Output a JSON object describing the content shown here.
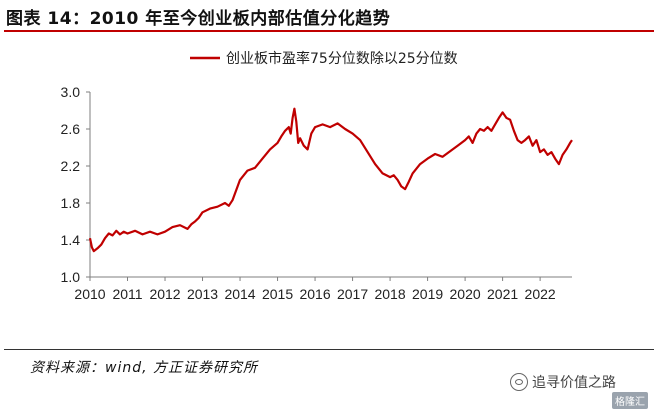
{
  "figure": {
    "title": "图表 14：2010 年至今创业板内部估值分化趋势",
    "source": "资料来源：wind, 方正证券研究所",
    "watermark": "追寻价值之路",
    "logo_text": "格隆汇"
  },
  "colors": {
    "series": "#c00000",
    "axis": "#7f7f7f",
    "title_rule": "#c00000"
  },
  "chart_data": {
    "type": "line",
    "title": "",
    "xlabel": "",
    "ylabel": "",
    "ylim": [
      1.0,
      3.0
    ],
    "yticks": [
      "1.0",
      "1.4",
      "1.8",
      "2.2",
      "2.6",
      "3.0"
    ],
    "xlim": [
      2010.0,
      2022.85
    ],
    "xticks": [
      "2010",
      "2011",
      "2012",
      "2013",
      "2014",
      "2015",
      "2016",
      "2017",
      "2018",
      "2019",
      "2020",
      "2021",
      "2022"
    ],
    "grid": false,
    "legend_position": "top-center",
    "series": [
      {
        "name": "创业板市盈率75分位数除以25分位数",
        "x": [
          2010.0,
          2010.05,
          2010.1,
          2010.2,
          2010.3,
          2010.4,
          2010.5,
          2010.6,
          2010.7,
          2010.8,
          2010.9,
          2011.0,
          2011.2,
          2011.4,
          2011.6,
          2011.8,
          2012.0,
          2012.2,
          2012.4,
          2012.6,
          2012.7,
          2012.8,
          2012.9,
          2013.0,
          2013.2,
          2013.4,
          2013.6,
          2013.7,
          2013.8,
          2014.0,
          2014.2,
          2014.4,
          2014.6,
          2014.8,
          2015.0,
          2015.1,
          2015.2,
          2015.3,
          2015.35,
          2015.4,
          2015.45,
          2015.5,
          2015.55,
          2015.6,
          2015.7,
          2015.8,
          2015.9,
          2016.0,
          2016.2,
          2016.4,
          2016.6,
          2016.8,
          2017.0,
          2017.2,
          2017.4,
          2017.6,
          2017.8,
          2018.0,
          2018.1,
          2018.2,
          2018.3,
          2018.4,
          2018.5,
          2018.6,
          2018.8,
          2019.0,
          2019.2,
          2019.4,
          2019.6,
          2019.8,
          2020.0,
          2020.1,
          2020.2,
          2020.3,
          2020.4,
          2020.5,
          2020.6,
          2020.7,
          2020.8,
          2020.9,
          2021.0,
          2021.1,
          2021.2,
          2021.3,
          2021.4,
          2021.5,
          2021.6,
          2021.7,
          2021.8,
          2021.9,
          2022.0,
          2022.1,
          2022.2,
          2022.3,
          2022.4,
          2022.5,
          2022.6,
          2022.7,
          2022.8,
          2022.85
        ],
        "values": [
          1.42,
          1.32,
          1.28,
          1.31,
          1.35,
          1.42,
          1.47,
          1.45,
          1.5,
          1.46,
          1.49,
          1.47,
          1.5,
          1.46,
          1.49,
          1.46,
          1.49,
          1.54,
          1.56,
          1.52,
          1.57,
          1.6,
          1.64,
          1.7,
          1.74,
          1.76,
          1.8,
          1.77,
          1.83,
          2.05,
          2.15,
          2.18,
          2.28,
          2.38,
          2.45,
          2.52,
          2.58,
          2.62,
          2.55,
          2.72,
          2.82,
          2.68,
          2.45,
          2.5,
          2.42,
          2.38,
          2.55,
          2.62,
          2.65,
          2.62,
          2.66,
          2.6,
          2.55,
          2.48,
          2.35,
          2.22,
          2.12,
          2.08,
          2.1,
          2.05,
          1.98,
          1.95,
          2.03,
          2.12,
          2.22,
          2.28,
          2.33,
          2.3,
          2.36,
          2.42,
          2.48,
          2.52,
          2.45,
          2.55,
          2.6,
          2.58,
          2.62,
          2.58,
          2.65,
          2.72,
          2.78,
          2.72,
          2.7,
          2.58,
          2.48,
          2.45,
          2.48,
          2.52,
          2.42,
          2.48,
          2.35,
          2.38,
          2.32,
          2.35,
          2.28,
          2.22,
          2.32,
          2.38,
          2.45,
          2.48
        ]
      }
    ]
  }
}
